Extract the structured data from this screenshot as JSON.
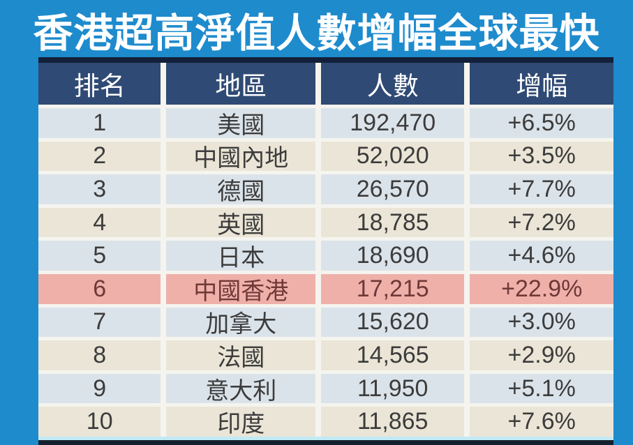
{
  "page": {
    "title": "香港超高淨值人數增幅全球最快"
  },
  "colors": {
    "background": "#1e8bcd",
    "title_text": "#ffffff",
    "top_border": "#13203a",
    "header_bg": "#2f4a74",
    "header_text": "#ffffff",
    "row_light_blue": "#dbe3ea",
    "row_beige": "#eae5d6",
    "highlight_bg": "#efb0aa",
    "highlight_text": "#6f3937",
    "text": "#3c3c3c",
    "gap": "#f5f4ef",
    "bottom_cyan": "#c2eaf5",
    "bottom_dark": "#15202e"
  },
  "chart_data": {
    "type": "table",
    "title": "香港超高淨值人數增幅全球最快",
    "columns": [
      "排名",
      "地區",
      "人數",
      "增幅"
    ],
    "rows": [
      {
        "rank": "1",
        "region": "美國",
        "count": "192,470",
        "growth": "+6.5%",
        "highlight": false
      },
      {
        "rank": "2",
        "region": "中國內地",
        "count": "52,020",
        "growth": "+3.5%",
        "highlight": false
      },
      {
        "rank": "3",
        "region": "德國",
        "count": "26,570",
        "growth": "+7.7%",
        "highlight": false
      },
      {
        "rank": "4",
        "region": "英國",
        "count": "18,785",
        "growth": "+7.2%",
        "highlight": false
      },
      {
        "rank": "5",
        "region": "日本",
        "count": "18,690",
        "growth": "+4.6%",
        "highlight": false
      },
      {
        "rank": "6",
        "region": "中國香港",
        "count": "17,215",
        "growth": "+22.9%",
        "highlight": true
      },
      {
        "rank": "7",
        "region": "加拿大",
        "count": "15,620",
        "growth": "+3.0%",
        "highlight": false
      },
      {
        "rank": "8",
        "region": "法國",
        "count": "14,565",
        "growth": "+2.9%",
        "highlight": false
      },
      {
        "rank": "9",
        "region": "意大利",
        "count": "11,950",
        "growth": "+5.1%",
        "highlight": false
      },
      {
        "rank": "10",
        "region": "印度",
        "count": "11,865",
        "growth": "+7.6%",
        "highlight": false
      }
    ],
    "highlighted_row_region": "中國香港",
    "layout_hints": {
      "row_striping": [
        "light-blue",
        "beige"
      ],
      "header_position": "top"
    }
  }
}
